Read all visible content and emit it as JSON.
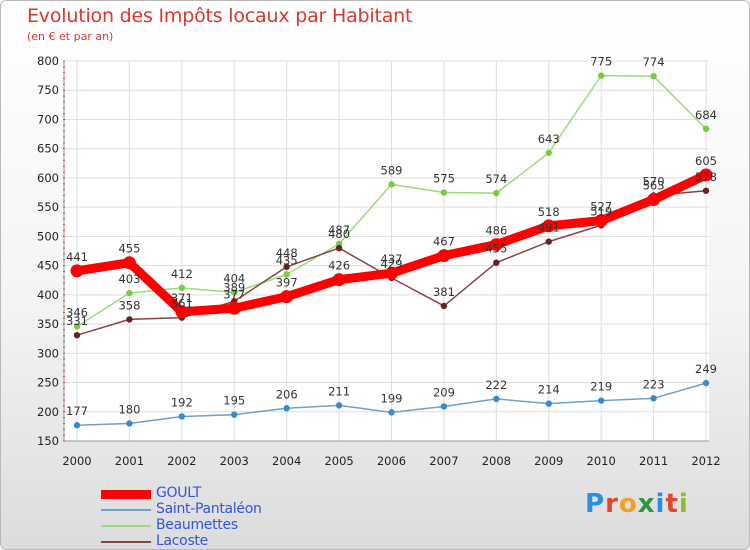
{
  "title": "Evolution des Impôts locaux par Habitant",
  "subtitle": "(en € et par an)",
  "logo": {
    "text": "Proxiti",
    "letter_colors": [
      "#2a8fdc",
      "#e8442a",
      "#f2a01e",
      "#2a9a3c",
      "#2a8fdc",
      "#e8442a",
      "#8abf2a"
    ]
  },
  "chart_data": {
    "type": "line",
    "x": [
      2000,
      2001,
      2002,
      2003,
      2004,
      2005,
      2006,
      2007,
      2008,
      2009,
      2010,
      2011,
      2012
    ],
    "ylim": [
      150,
      800
    ],
    "yticks": [
      150,
      200,
      250,
      300,
      350,
      400,
      450,
      500,
      550,
      600,
      650,
      700,
      750,
      800
    ],
    "grid": true,
    "legend_position": "bottom-left",
    "series": [
      {
        "name": "GOULT",
        "color": "#ff0000",
        "values": [
          441,
          455,
          371,
          377,
          397,
          426,
          437,
          467,
          486,
          518,
          527,
          563,
          605
        ]
      },
      {
        "name": "Saint-Pantaléon",
        "color": "#6fa0c8",
        "marker": "#3a8ad0",
        "values": [
          177,
          180,
          192,
          195,
          206,
          211,
          199,
          209,
          222,
          214,
          219,
          223,
          249
        ]
      },
      {
        "name": "Beaumettes",
        "color": "#99dd77",
        "marker": "#77cc44",
        "values": [
          346,
          403,
          412,
          404,
          435,
          487,
          589,
          575,
          574,
          643,
          775,
          774,
          684
        ]
      },
      {
        "name": "Lacoste",
        "color": "#884444",
        "marker": "#662222",
        "values": [
          331,
          358,
          361,
          389,
          448,
          480,
          429,
          381,
          455,
          491,
          519,
          570,
          578
        ]
      }
    ]
  }
}
